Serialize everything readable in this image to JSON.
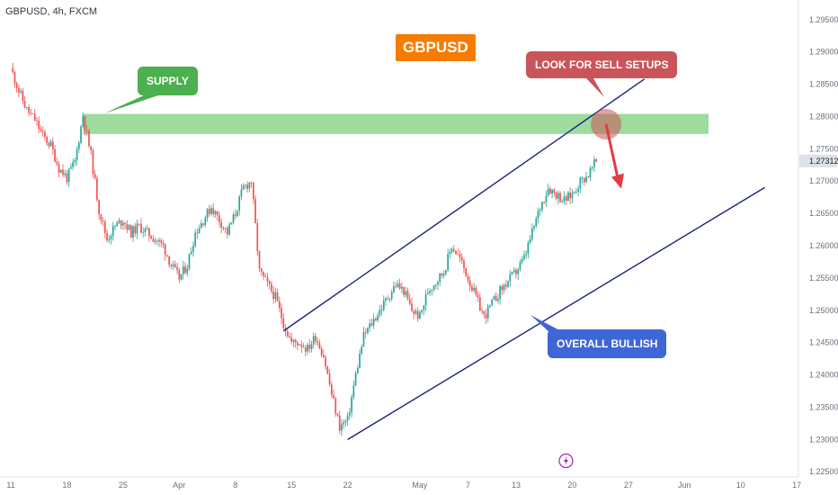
{
  "header": {
    "symbol": "GBPUSD, 4h, FXCM"
  },
  "colors": {
    "up": "#26a69a",
    "down": "#ef5350",
    "channel": "#1a237e",
    "supply_zone": "#7ecf7e",
    "title_bg": "#f57c00",
    "supply_bg": "#4caf50",
    "sell_bg": "#c9545a",
    "bullish_bg": "#3f66d6",
    "arrow": "#e53946",
    "price_tag_bg": "#dde1ea"
  },
  "annotations": {
    "title": "GBPUSD",
    "supply": "SUPPLY",
    "sell": "LOOK FOR SELL SETUPS",
    "bullish": "OVERALL BULLISH"
  },
  "chart_data": {
    "type": "candlestick",
    "symbol": "GBPUSD",
    "interval": "4h",
    "source": "FXCM",
    "x_ticks": [
      "11",
      "18",
      "25",
      "Apr",
      "8",
      "15",
      "22",
      "May",
      "7",
      "13",
      "20",
      "27",
      "Jun",
      "10",
      "17"
    ],
    "y_ticks": [
      "1.29500",
      "1.29000",
      "1.28500",
      "1.28000",
      "1.27500",
      "1.27000",
      "1.26500",
      "1.26000",
      "1.25500",
      "1.25000",
      "1.24500",
      "1.24000",
      "1.23500",
      "1.23000",
      "1.22500"
    ],
    "ylim": [
      1.2235,
      1.2965
    ],
    "last_price": "1.27312",
    "supply_zone": [
      1.2773,
      1.2804
    ],
    "price_path": [
      [
        "Mar 11",
        1.2875
      ],
      [
        "Mar 12",
        1.284
      ],
      [
        "Mar 13",
        1.281
      ],
      [
        "Mar 14",
        1.2795
      ],
      [
        "Mar 15",
        1.277
      ],
      [
        "Mar 16",
        1.2755
      ],
      [
        "Mar 17",
        1.272
      ],
      [
        "Mar 18",
        1.2705
      ],
      [
        "Mar 19",
        1.273
      ],
      [
        "Mar 20",
        1.2802
      ],
      [
        "Mar 21",
        1.274
      ],
      [
        "Mar 22",
        1.2655
      ],
      [
        "Mar 23",
        1.261
      ],
      [
        "Mar 24",
        1.263
      ],
      [
        "Mar 25",
        1.264
      ],
      [
        "Mar 26",
        1.262
      ],
      [
        "Mar 27",
        1.263
      ],
      [
        "Mar 28",
        1.262
      ],
      [
        "Mar 29",
        1.261
      ],
      [
        "Mar 30",
        1.26
      ],
      [
        "Mar 31",
        1.257
      ],
      [
        "Apr 1",
        1.255
      ],
      [
        "Apr 2",
        1.257
      ],
      [
        "Apr 3",
        1.262
      ],
      [
        "Apr 4",
        1.264
      ],
      [
        "Apr 5",
        1.266
      ],
      [
        "Apr 6",
        1.264
      ],
      [
        "Apr 7",
        1.262
      ],
      [
        "Apr 8",
        1.265
      ],
      [
        "Apr 9",
        1.269
      ],
      [
        "Apr 10",
        1.27
      ],
      [
        "Apr 11",
        1.256
      ],
      [
        "Apr 12",
        1.254
      ],
      [
        "Apr 13",
        1.252
      ],
      [
        "Apr 14",
        1.248
      ],
      [
        "Apr 15",
        1.245
      ],
      [
        "Apr 16",
        1.245
      ],
      [
        "Apr 17",
        1.244
      ],
      [
        "Apr 18",
        1.246
      ],
      [
        "Apr 19",
        1.243
      ],
      [
        "Apr 20",
        1.237
      ],
      [
        "Apr 21",
        1.232
      ],
      [
        "Apr 22",
        1.233
      ],
      [
        "Apr 23",
        1.24
      ],
      [
        "Apr 24",
        1.246
      ],
      [
        "Apr 25",
        1.248
      ],
      [
        "Apr 26",
        1.25
      ],
      [
        "Apr 27",
        1.252
      ],
      [
        "Apr 28",
        1.254
      ],
      [
        "Apr 29",
        1.253
      ],
      [
        "Apr 30",
        1.25
      ],
      [
        "May 1",
        1.249
      ],
      [
        "May 2",
        1.253
      ],
      [
        "May 3",
        1.2545
      ],
      [
        "May 4",
        1.256
      ],
      [
        "May 5",
        1.26
      ],
      [
        "May 6",
        1.258
      ],
      [
        "May 7",
        1.255
      ],
      [
        "May 8",
        1.252
      ],
      [
        "May 9",
        1.249
      ],
      [
        "May 10",
        1.251
      ],
      [
        "May 11",
        1.253
      ],
      [
        "May 12",
        1.2545
      ],
      [
        "May 13",
        1.256
      ],
      [
        "May 14",
        1.258
      ],
      [
        "May 15",
        1.262
      ],
      [
        "May 16",
        1.266
      ],
      [
        "May 17",
        1.269
      ],
      [
        "May 18",
        1.268
      ],
      [
        "May 19",
        1.267
      ],
      [
        "May 20",
        1.268
      ],
      [
        "May 21",
        1.27
      ],
      [
        "May 22",
        1.271
      ],
      [
        "May 23",
        1.2731
      ]
    ],
    "channel_lines": [
      {
        "name": "upper",
        "from": [
          "Apr 14",
          1.2468
        ],
        "to": [
          "May 29",
          1.2858
        ]
      },
      {
        "name": "lower",
        "from": [
          "Apr 22",
          1.23
        ],
        "to": [
          "Jun 13",
          1.269
        ]
      }
    ]
  }
}
